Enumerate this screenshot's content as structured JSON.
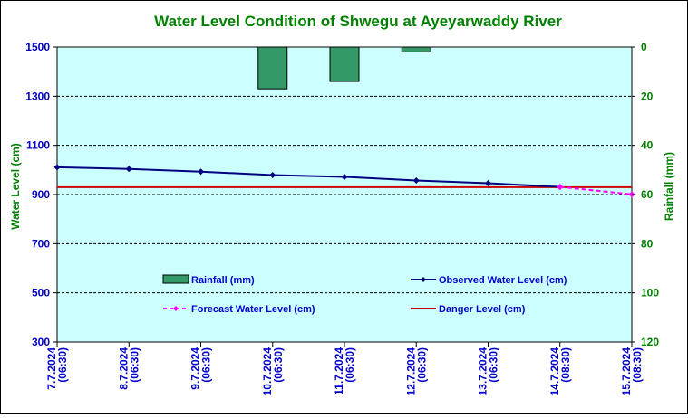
{
  "colors": {
    "plot_bg": "#ccffff",
    "title": "#008000",
    "left_axis": "#0000cc",
    "right_axis": "#008000",
    "rainfall": "#339966",
    "observed": "#000080",
    "forecast": "#ff00ff",
    "danger": "#cc0000"
  },
  "chart_data": {
    "type": "line",
    "title": "Water Level Condition of Shwegu at Ayeyarwaddy River",
    "y_left_label": "Water Level (cm)",
    "y_right_label": "Rainfall (mm)",
    "y_left_range": [
      300,
      1500
    ],
    "y_left_ticks": [
      "300",
      "500",
      "700",
      "900",
      "1100",
      "1300",
      "1500"
    ],
    "y_right_range": [
      0,
      120
    ],
    "y_right_reversed": true,
    "y_right_ticks": [
      "0",
      "20",
      "40",
      "60",
      "80",
      "100",
      "120"
    ],
    "grid": "horizontal-dashed",
    "categories": [
      {
        "date": "7.7.2024",
        "time": "(06:30)"
      },
      {
        "date": "8.7.2024",
        "time": "(06:30)"
      },
      {
        "date": "9.7.2024",
        "time": "(06:30)"
      },
      {
        "date": "10.7.2024",
        "time": "(06:30)"
      },
      {
        "date": "11.7.2024",
        "time": "(06:30)"
      },
      {
        "date": "12.7.2024",
        "time": "(06:30)"
      },
      {
        "date": "13.7.2024",
        "time": "(06:30)"
      },
      {
        "date": "14.7.2024",
        "time": "(08:30)"
      },
      {
        "date": "15.7.2024",
        "time": "(08:30)"
      }
    ],
    "series": [
      {
        "name": "Rainfall (mm)",
        "type": "bar",
        "axis": "right",
        "values": [
          null,
          null,
          null,
          17,
          14,
          2,
          null,
          null,
          null
        ]
      },
      {
        "name": "Observed Water Level (cm)",
        "type": "line",
        "axis": "left",
        "values": [
          1011,
          1004,
          993,
          979,
          972,
          957,
          946,
          931,
          null
        ]
      },
      {
        "name": "Forecast Water Level (cm)",
        "type": "line",
        "axis": "left",
        "dashed": true,
        "values": [
          null,
          null,
          null,
          null,
          null,
          null,
          null,
          931,
          901
        ]
      },
      {
        "name": "Danger Level (cm)",
        "type": "line",
        "axis": "left",
        "values": [
          930,
          930,
          930,
          930,
          930,
          930,
          930,
          930,
          930
        ]
      }
    ],
    "legend": [
      "Rainfall (mm)",
      "Observed Water Level (cm)",
      "Forecast Water Level (cm)",
      "Danger Level (cm)"
    ]
  }
}
